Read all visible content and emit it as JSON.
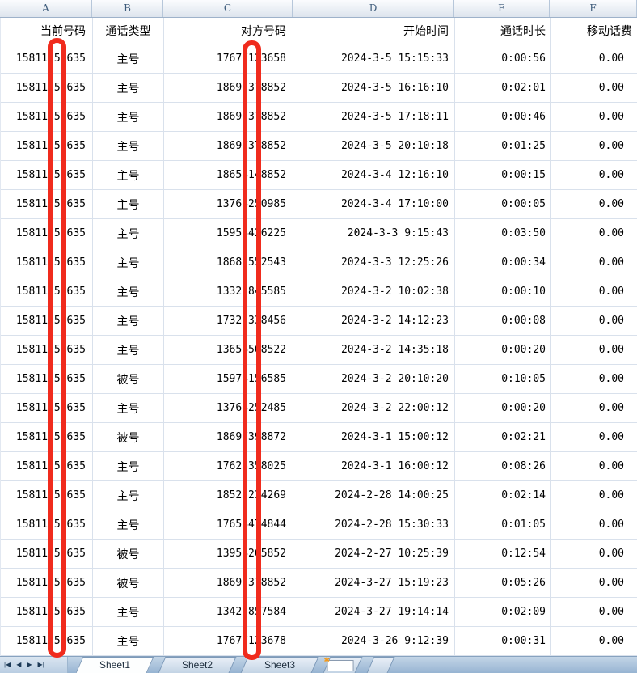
{
  "columns": {
    "letters": [
      "A",
      "B",
      "C",
      "D",
      "E",
      "F"
    ]
  },
  "table": {
    "headers": [
      "当前号码",
      "通话类型",
      "对方号码",
      "开始时间",
      "通话时长",
      "移动话费"
    ],
    "rows": [
      [
        "15811753635",
        "主号",
        "17677123658",
        "2024-3-5 15:15:33",
        "0:00:56",
        "0.00"
      ],
      [
        "15811753635",
        "主号",
        "18697378852",
        "2024-3-5 16:16:10",
        "0:02:01",
        "0.00"
      ],
      [
        "15811753635",
        "主号",
        "18697378852",
        "2024-3-5 17:18:11",
        "0:00:46",
        "0.00"
      ],
      [
        "15811753635",
        "主号",
        "18697378852",
        "2024-3-5 20:10:18",
        "0:01:25",
        "0.00"
      ],
      [
        "15811753635",
        "主号",
        "18658148852",
        "2024-3-4 12:16:10",
        "0:00:15",
        "0.00"
      ],
      [
        "15811753635",
        "主号",
        "13768250985",
        "2024-3-4 17:10:00",
        "0:00:05",
        "0.00"
      ],
      [
        "15811753635",
        "主号",
        "15958426225",
        "2024-3-3 9:15:43",
        "0:03:50",
        "0.00"
      ],
      [
        "15811753635",
        "主号",
        "18685552543",
        "2024-3-3 12:25:26",
        "0:00:34",
        "0.00"
      ],
      [
        "15811753635",
        "主号",
        "13325845585",
        "2024-3-2 10:02:38",
        "0:00:10",
        "0.00"
      ],
      [
        "15811753635",
        "主号",
        "17322338456",
        "2024-3-2 14:12:23",
        "0:00:08",
        "0.00"
      ],
      [
        "15811753635",
        "主号",
        "13658568522",
        "2024-3-2 14:35:18",
        "0:00:20",
        "0.00"
      ],
      [
        "15811753635",
        "被号",
        "15978156585",
        "2024-3-2 20:10:20",
        "0:10:05",
        "0.00"
      ],
      [
        "15811753635",
        "主号",
        "13768252485",
        "2024-3-2 22:00:12",
        "0:00:20",
        "0.00"
      ],
      [
        "15811753635",
        "被号",
        "18697398872",
        "2024-3-1 15:00:12",
        "0:02:21",
        "0.00"
      ],
      [
        "15811753635",
        "主号",
        "17623358025",
        "2024-3-1 16:00:12",
        "0:08:26",
        "0.00"
      ],
      [
        "15811753635",
        "主号",
        "18525234269",
        "2024-2-28 14:00:25",
        "0:02:14",
        "0.00"
      ],
      [
        "15811753635",
        "主号",
        "17658474844",
        "2024-2-28 15:30:33",
        "0:01:05",
        "0.00"
      ],
      [
        "15811753635",
        "被号",
        "13958265852",
        "2024-2-27 10:25:39",
        "0:12:54",
        "0.00"
      ],
      [
        "15811753635",
        "被号",
        "18697378852",
        "2024-3-27 15:19:23",
        "0:05:26",
        "0.00"
      ],
      [
        "15811753635",
        "主号",
        "13425857584",
        "2024-3-27 19:14:14",
        "0:02:09",
        "0.00"
      ],
      [
        "15811753635",
        "主号",
        "17677123678",
        "2024-3-26 9:12:39",
        "0:00:31",
        "0.00"
      ]
    ]
  },
  "tabbar": {
    "tabs": [
      "Sheet1",
      "Sheet2",
      "Sheet3"
    ],
    "active_tab": "Sheet1",
    "nav": [
      {
        "name": "scroll-first-icon",
        "glyph": "|◀"
      },
      {
        "name": "scroll-prev-icon",
        "glyph": "◀"
      },
      {
        "name": "scroll-next-icon",
        "glyph": "▶"
      },
      {
        "name": "scroll-last-icon",
        "glyph": "▶|"
      }
    ],
    "insert_glyph": "✱"
  },
  "annotations": {
    "redaction_color": "#f02b1d",
    "redactions": [
      {
        "name": "redaction-bar-column-a",
        "covers": "digit 7 of 当前号码"
      },
      {
        "name": "redaction-bar-column-c",
        "covers": "digit 6 of 对方号码"
      }
    ]
  },
  "colors": {
    "gridline": "#d9e1ec",
    "column_strip_text": "#3c5a7a",
    "tabbar_bg": "#a9c2db"
  }
}
